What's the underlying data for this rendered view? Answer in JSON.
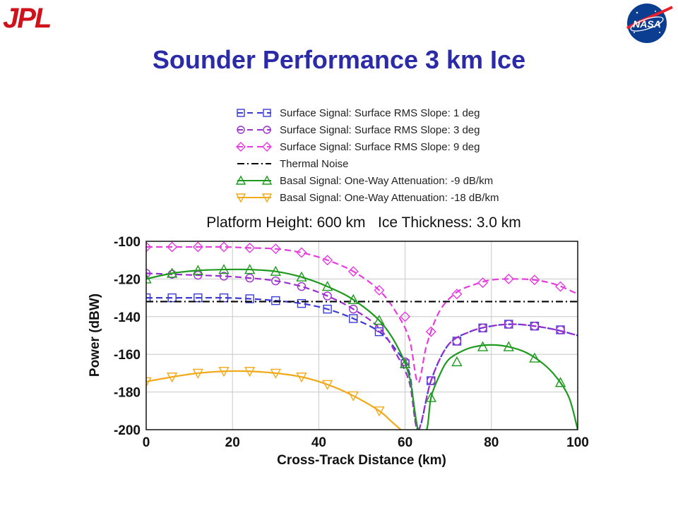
{
  "slide": {
    "title": "Sounder Performance 3 km Ice",
    "logo_left": "JPL",
    "logo_right": "NASA"
  },
  "colors": {
    "title": "#2b2ba8",
    "jpl_red": "#d0121b",
    "nasa_blue": "#0b3d91"
  },
  "chart_data": {
    "type": "line",
    "title": "Platform Height: 600 km   Ice Thickness: 3.0 km",
    "xlabel": "Cross-Track Distance (km)",
    "ylabel": "Power (dBW)",
    "xlim": [
      0,
      100
    ],
    "ylim": [
      -200,
      -100
    ],
    "xticks": [
      0,
      20,
      40,
      60,
      80,
      100
    ],
    "yticks": [
      -100,
      -120,
      -140,
      -160,
      -180,
      -200
    ],
    "grid": true,
    "legend_placement": "above-plot",
    "series": [
      {
        "name": "Surface Signal: Surface RMS Slope:   1 deg",
        "color": "#3a3ad6",
        "dash": "dashed",
        "marker": "square",
        "x": [
          0,
          6,
          12,
          18,
          24,
          30,
          36,
          42,
          48,
          54,
          58,
          61,
          63,
          66,
          70,
          75,
          80,
          85,
          90,
          95,
          100
        ],
        "y": [
          -130,
          -130,
          -130,
          -130,
          -130.5,
          -131.5,
          -133,
          -136,
          -141,
          -148,
          -158,
          -170,
          -200,
          -174,
          -155,
          -148,
          -145,
          -144,
          -145,
          -147,
          -150
        ],
        "marker_x": [
          0,
          6,
          12,
          18,
          24,
          30,
          36,
          42,
          48,
          54,
          60,
          66,
          72,
          78,
          84,
          90,
          96
        ],
        "marker_y": [
          -130,
          -130,
          -130,
          -130,
          -130.5,
          -131.5,
          -133,
          -136,
          -141,
          -148,
          -165,
          -174,
          -153,
          -146,
          -144,
          -145,
          -147
        ]
      },
      {
        "name": "Surface Signal: Surface RMS Slope:   3 deg",
        "color": "#9b2fd0",
        "dash": "dashed",
        "marker": "circle",
        "x": [
          0,
          6,
          12,
          18,
          24,
          30,
          36,
          42,
          48,
          54,
          58,
          61,
          63,
          66,
          70,
          75,
          80,
          85,
          90,
          95,
          100
        ],
        "y": [
          -117,
          -117.5,
          -118,
          -118.5,
          -119.5,
          -121,
          -124,
          -129,
          -136,
          -146,
          -160,
          -175,
          -200,
          -174,
          -155,
          -148,
          -145,
          -144,
          -145,
          -147,
          -150
        ],
        "marker_x": [
          0,
          6,
          12,
          18,
          24,
          30,
          36,
          42,
          48,
          54,
          60,
          66,
          72,
          78,
          84,
          90,
          96
        ],
        "marker_y": [
          -117,
          -117.5,
          -118,
          -118.5,
          -119.5,
          -121,
          -124,
          -129,
          -136,
          -146,
          -164,
          -174,
          -153,
          -146,
          -144,
          -145,
          -147
        ]
      },
      {
        "name": "Surface Signal: Surface RMS Slope:   9 deg",
        "color": "#e83be0",
        "dash": "dashed",
        "marker": "diamond",
        "x": [
          0,
          6,
          12,
          18,
          24,
          30,
          36,
          42,
          48,
          54,
          58,
          61,
          63,
          65,
          68,
          72,
          76,
          80,
          85,
          90,
          95,
          100
        ],
        "y": [
          -103,
          -103,
          -103,
          -103,
          -103.5,
          -104,
          -106,
          -110,
          -116,
          -126,
          -138,
          -152,
          -175,
          -155,
          -137,
          -127,
          -123,
          -120.5,
          -120,
          -120.5,
          -123,
          -128
        ],
        "marker_x": [
          0,
          6,
          12,
          18,
          24,
          30,
          36,
          42,
          48,
          54,
          60,
          66,
          72,
          78,
          84,
          90,
          96
        ],
        "marker_y": [
          -103,
          -103,
          -103,
          -103,
          -103.5,
          -104,
          -106,
          -110,
          -116,
          -126,
          -140,
          -148,
          -128,
          -122,
          -120,
          -120.5,
          -124
        ]
      },
      {
        "name": "Thermal Noise",
        "color": "#000000",
        "dash": "dashdot",
        "marker": "none",
        "x": [
          0,
          100
        ],
        "y": [
          -132,
          -132
        ]
      },
      {
        "name": "Basal Signal: One-Way Attenuation:  -9 dB/km",
        "color": "#1e9a1e",
        "dash": "solid",
        "marker": "triangle-up",
        "x": [
          0,
          6,
          12,
          18,
          24,
          30,
          36,
          42,
          48,
          54,
          58,
          61,
          63,
          65,
          66,
          68,
          70,
          73,
          76,
          80,
          84,
          88,
          92,
          95,
          98,
          100
        ],
        "y": [
          -120,
          -117,
          -115.5,
          -115,
          -115,
          -116,
          -119,
          -124,
          -131,
          -142,
          -155,
          -172,
          -200,
          -200,
          -183,
          -171,
          -163,
          -158.5,
          -156,
          -155,
          -156,
          -159,
          -165,
          -172,
          -183,
          -200
        ],
        "marker_x": [
          0,
          6,
          12,
          18,
          24,
          30,
          36,
          42,
          48,
          54,
          60,
          66,
          72,
          78,
          84,
          90,
          96
        ],
        "marker_y": [
          -120,
          -117,
          -115.5,
          -115,
          -115,
          -116,
          -119,
          -124,
          -131,
          -142,
          -165,
          -183,
          -164,
          -156,
          -156,
          -162,
          -175
        ]
      },
      {
        "name": "Basal Signal: One-Way Attenuation: -18 dB/km",
        "color": "#f2a91a",
        "dash": "solid",
        "marker": "triangle-down",
        "x": [
          0,
          6,
          12,
          18,
          24,
          30,
          36,
          42,
          48,
          54,
          57,
          59
        ],
        "y": [
          -174.5,
          -172,
          -170,
          -169,
          -169,
          -170,
          -172,
          -176,
          -182,
          -190,
          -196,
          -200
        ],
        "marker_x": [
          0,
          6,
          12,
          18,
          24,
          30,
          36,
          42,
          48,
          54
        ],
        "marker_y": [
          -174.5,
          -172,
          -170,
          -169,
          -169,
          -170,
          -172,
          -176,
          -182,
          -190
        ]
      }
    ]
  }
}
